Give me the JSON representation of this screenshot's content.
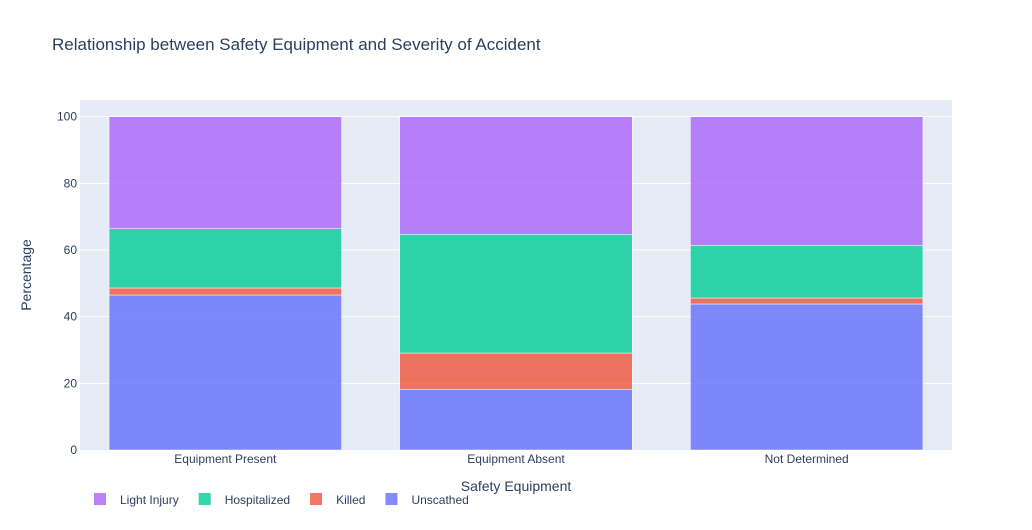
{
  "chart_data": {
    "type": "bar",
    "stacked": true,
    "title": "Relationship between Safety Equipment and Severity of Accident",
    "xlabel": "Safety Equipment",
    "ylabel": "Percentage",
    "ylim": [
      0,
      105
    ],
    "yticks": [
      0,
      20,
      40,
      60,
      80,
      100
    ],
    "grid": true,
    "legend_position": "bottom-left",
    "categories": [
      "Equipment Present",
      "Equipment Absent",
      "Not Determined"
    ],
    "series": [
      {
        "name": "Unscathed",
        "color": "#636efa",
        "values": [
          46.5,
          18.2,
          43.8
        ]
      },
      {
        "name": "Killed",
        "color": "#ef553b",
        "values": [
          2.1,
          10.9,
          1.8
        ]
      },
      {
        "name": "Hospitalized",
        "color": "#00cc96",
        "values": [
          17.8,
          35.6,
          15.8
        ]
      },
      {
        "name": "Light Injury",
        "color": "#ab63fa",
        "values": [
          33.6,
          35.3,
          38.6
        ]
      }
    ],
    "legend_order": [
      "Light Injury",
      "Hospitalized",
      "Killed",
      "Unscathed"
    ]
  },
  "colors": {
    "plot_background": "#e5ecf6",
    "grid": "#ffffff",
    "text": "#2a3f5f"
  }
}
